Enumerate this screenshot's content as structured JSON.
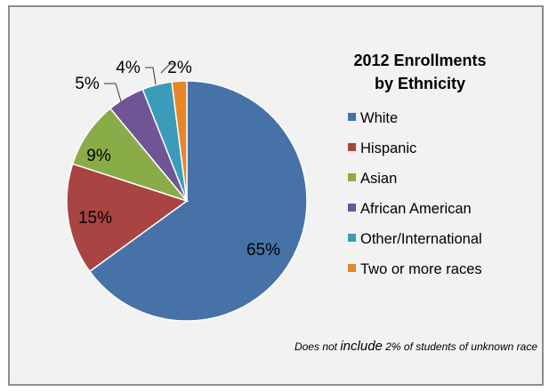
{
  "chart_data": {
    "type": "pie",
    "title_lines": [
      "2012 Enrollments",
      "by Ethnicity"
    ],
    "slices": [
      {
        "label": "White",
        "value": 65,
        "display": "65%",
        "color": "#4672a8"
      },
      {
        "label": "Hispanic",
        "value": 15,
        "display": "15%",
        "color": "#a94442"
      },
      {
        "label": "Asian",
        "value": 9,
        "display": "9%",
        "color": "#8aac48"
      },
      {
        "label": "African American",
        "value": 5,
        "display": "5%",
        "color": "#6f5496"
      },
      {
        "label": "Other/International",
        "value": 4,
        "display": "4%",
        "color": "#3a9cb8"
      },
      {
        "label": "Two or more races",
        "value": 2,
        "display": "2%",
        "color": "#e8852a"
      }
    ],
    "legend_position": "right",
    "note": {
      "pre": "Does not ",
      "emphasis": "include",
      "post": " 2% of students of unknown race"
    }
  }
}
